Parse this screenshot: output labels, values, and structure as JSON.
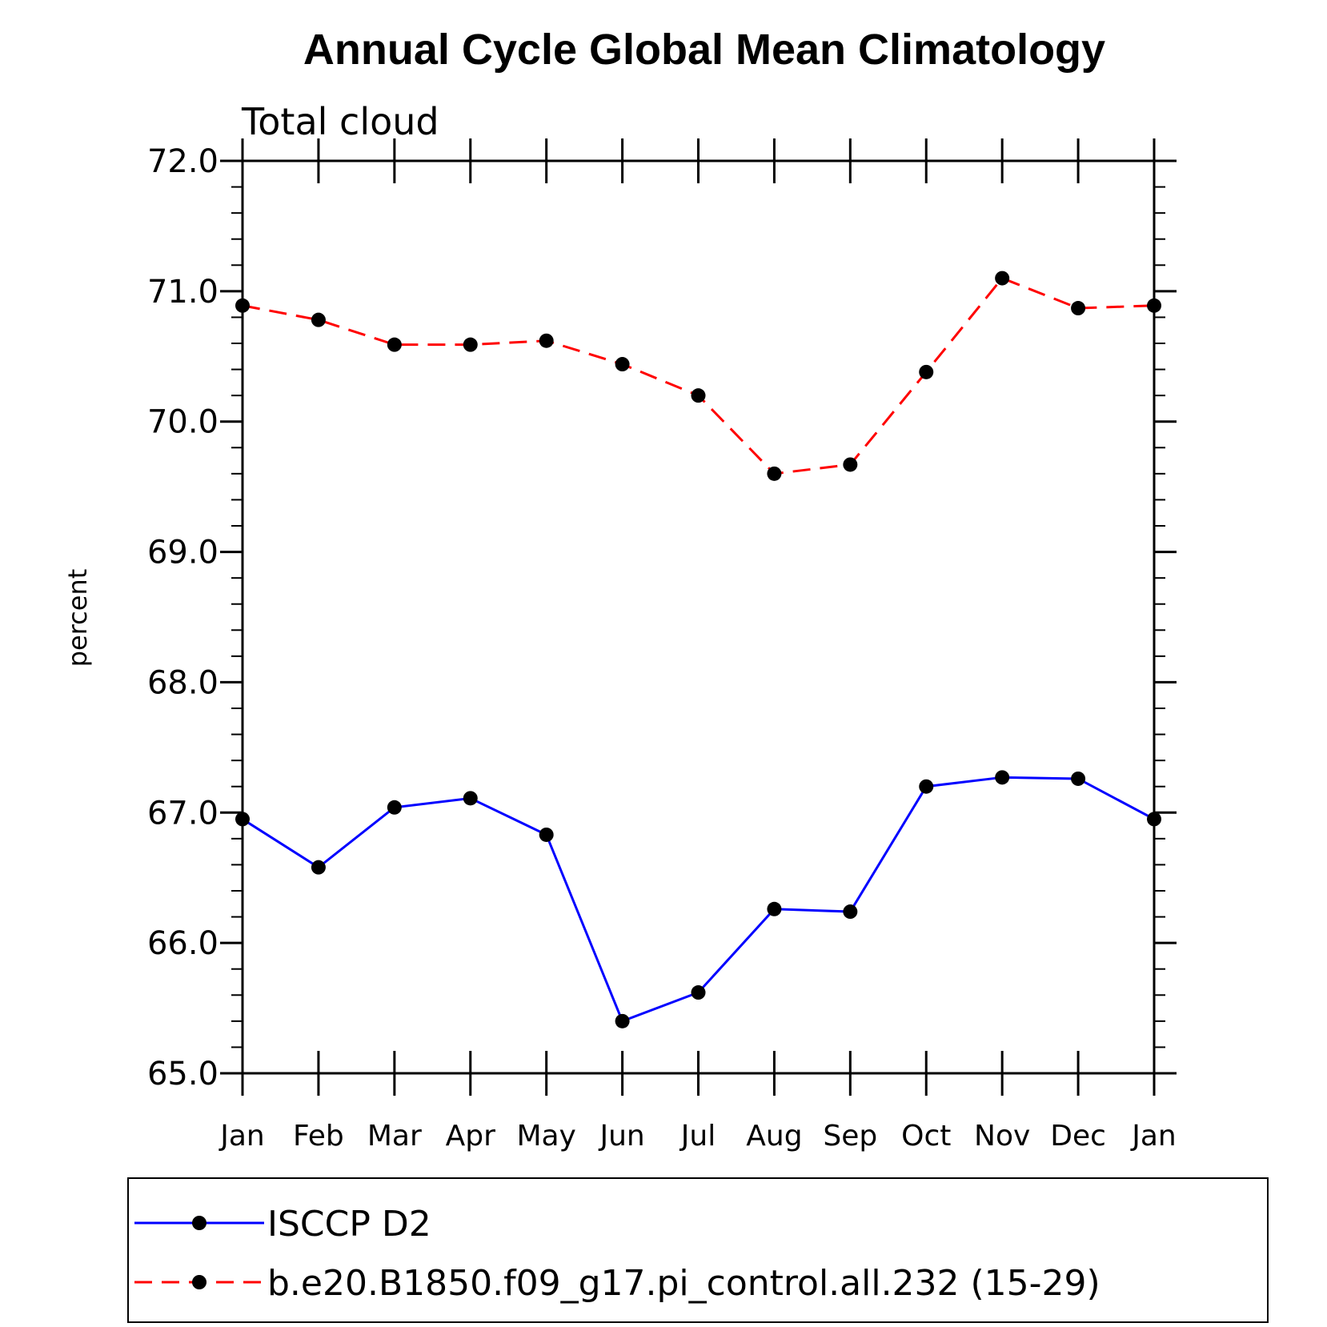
{
  "chart_data": {
    "type": "line",
    "title": "Annual Cycle Global Mean Climatology",
    "subtitle": "Total cloud",
    "ylabel": "percent",
    "xlabel": "",
    "ylim": [
      65.0,
      72.0
    ],
    "yticks": [
      "65.0",
      "66.0",
      "67.0",
      "68.0",
      "69.0",
      "70.0",
      "71.0",
      "72.0"
    ],
    "categories": [
      "Jan",
      "Feb",
      "Mar",
      "Apr",
      "May",
      "Jun",
      "Jul",
      "Aug",
      "Sep",
      "Oct",
      "Nov",
      "Dec",
      "Jan"
    ],
    "series": [
      {
        "name": "ISCCP D2",
        "color": "#0000ff",
        "dash": "solid",
        "marker": "filled-circle",
        "values": [
          66.95,
          66.58,
          67.04,
          67.11,
          66.83,
          65.4,
          65.62,
          66.26,
          66.24,
          67.2,
          67.27,
          67.26,
          66.95
        ]
      },
      {
        "name": "b.e20.B1850.f09_g17.pi_control.all.232 (15-29)",
        "color": "#ff0000",
        "dash": "dashed",
        "marker": "filled-circle",
        "values": [
          70.89,
          70.78,
          70.59,
          70.59,
          70.62,
          70.44,
          70.2,
          69.6,
          69.67,
          70.38,
          71.1,
          70.87,
          70.89
        ]
      }
    ],
    "legend_position": "bottom",
    "grid": false
  }
}
